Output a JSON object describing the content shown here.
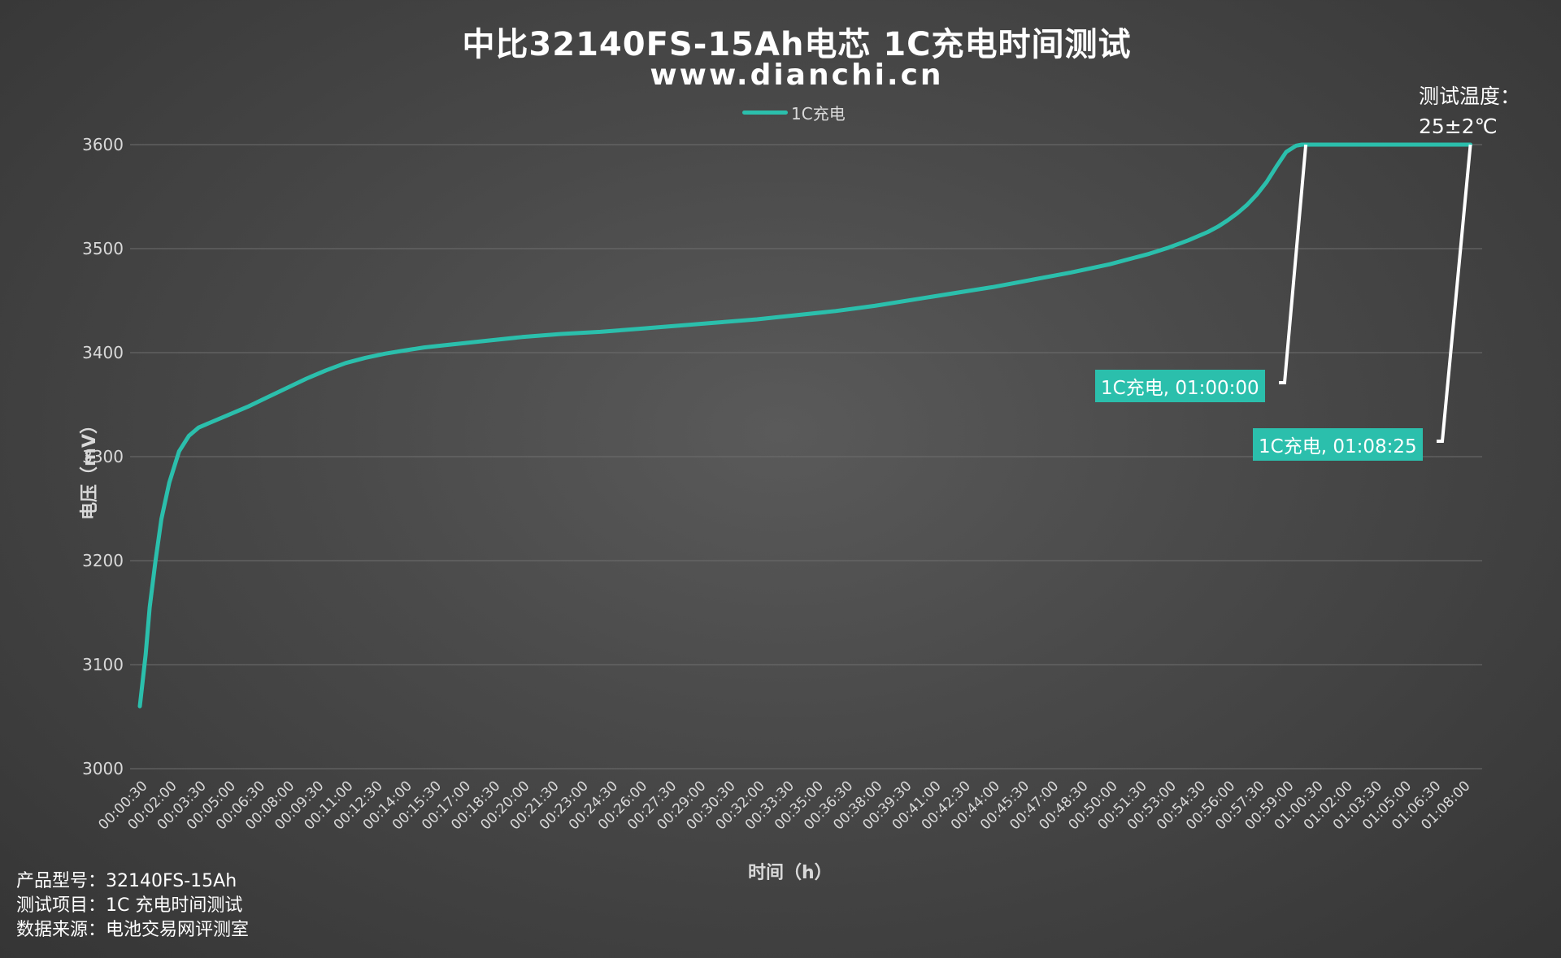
{
  "chart_data": {
    "type": "line",
    "title": "中比32140FS-15Ah电芯 1C充电时间测试",
    "subtitle": "www.dianchi.cn",
    "ylabel": "电压（mV）",
    "xlabel": "时间（h）",
    "ylim": [
      3000,
      3600
    ],
    "yticks": [
      3000,
      3100,
      3200,
      3300,
      3400,
      3500,
      3600
    ],
    "xticks": [
      "00:00:30",
      "00:02:00",
      "00:03:30",
      "00:05:00",
      "00:06:30",
      "00:08:00",
      "00:09:30",
      "00:11:00",
      "00:12:30",
      "00:14:00",
      "00:15:30",
      "00:17:00",
      "00:18:30",
      "00:20:00",
      "00:21:30",
      "00:23:00",
      "00:24:30",
      "00:26:00",
      "00:27:30",
      "00:29:00",
      "00:30:30",
      "00:32:00",
      "00:33:30",
      "00:35:00",
      "00:36:30",
      "00:38:00",
      "00:39:30",
      "00:41:00",
      "00:42:30",
      "00:44:00",
      "00:45:30",
      "00:47:00",
      "00:48:30",
      "00:50:00",
      "00:51:30",
      "00:53:00",
      "00:54:30",
      "00:56:00",
      "00:57:30",
      "00:59:00",
      "01:00:30",
      "01:02:00",
      "01:03:30",
      "01:05:00",
      "01:06:30",
      "01:08:00"
    ],
    "grid": true,
    "legend_position": "top-center",
    "series": [
      {
        "name": "1C充电",
        "color": "#2bbfac",
        "x_minutes": [
          0.5,
          0.8,
          1.0,
          1.3,
          1.6,
          2.0,
          2.5,
          3.0,
          3.5,
          4.0,
          5.0,
          6.0,
          7.0,
          8.0,
          9.0,
          10.0,
          11.0,
          12.0,
          13.0,
          14.0,
          15.0,
          16.0,
          18.0,
          20.0,
          22.0,
          24.0,
          26.0,
          28.0,
          30.0,
          32.0,
          34.0,
          36.0,
          38.0,
          40.0,
          42.0,
          44.0,
          46.0,
          48.0,
          50.0,
          52.0,
          53.0,
          54.0,
          55.0,
          55.5,
          56.0,
          56.5,
          57.0,
          57.5,
          58.0,
          58.5,
          59.0,
          59.5,
          59.8,
          60.0,
          62.0,
          64.0,
          66.0,
          68.0,
          68.4
        ],
        "values": [
          3060,
          3110,
          3155,
          3200,
          3240,
          3275,
          3305,
          3320,
          3328,
          3332,
          3340,
          3348,
          3357,
          3366,
          3375,
          3383,
          3390,
          3395,
          3399,
          3402,
          3405,
          3407,
          3411,
          3415,
          3418,
          3420,
          3423,
          3426,
          3429,
          3432,
          3436,
          3440,
          3445,
          3451,
          3457,
          3463,
          3470,
          3477,
          3485,
          3495,
          3501,
          3508,
          3516,
          3521,
          3527,
          3534,
          3542,
          3552,
          3564,
          3579,
          3593,
          3599,
          3600,
          3600,
          3600,
          3600,
          3600,
          3600,
          3600
        ]
      }
    ],
    "annotations": [
      {
        "label": "1C充电, 01:00:00",
        "x_minutes": 60.0,
        "y": 3600
      },
      {
        "label": "1C充电, 01:08:25",
        "x_minutes": 68.4,
        "y": 3600
      }
    ]
  },
  "temperature": {
    "line1": "测试温度：",
    "line2": "25±2℃"
  },
  "info": {
    "model": "产品型号：32140FS-15Ah",
    "item": "测试项目：1C 充电时间测试",
    "source": "数据来源：电池交易网评测室"
  }
}
